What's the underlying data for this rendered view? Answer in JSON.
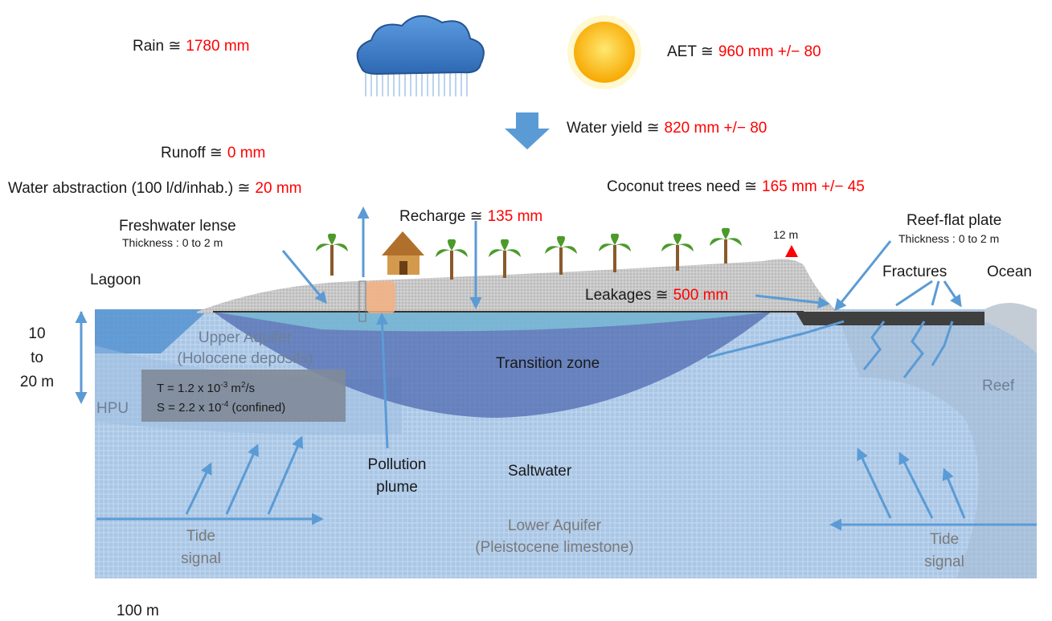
{
  "budget": {
    "rain": {
      "label": "Rain ≅",
      "value": "1780 mm"
    },
    "aet": {
      "label": "AET ≅",
      "value": "960 mm +/− 80"
    },
    "water_yield": {
      "label": "Water yield ≅",
      "value": "820 mm +/− 80"
    },
    "runoff": {
      "label": "Runoff ≅",
      "value": "0 mm"
    },
    "abstraction": {
      "label": "Water abstraction (100 l/d/inhab.) ≅",
      "value": "20 mm"
    },
    "coconut": {
      "label": "Coconut trees need ≅",
      "value": "165 mm +/− 45"
    },
    "recharge": {
      "label": "Recharge ≅",
      "value": "135 mm"
    },
    "leakages": {
      "label": "Leakages ≅",
      "value": "500 mm"
    }
  },
  "labels": {
    "freshwater_lense": {
      "title": "Freshwater lense",
      "subtitle": "Thickness : 0 to 2 m"
    },
    "reef_flat": {
      "title": "Reef-flat plate",
      "subtitle": "Thickness : 0 to 2 m"
    },
    "elevation": "12 m",
    "lagoon": "Lagoon",
    "fractures": "Fractures",
    "ocean": "Ocean",
    "depth": [
      "10",
      "to",
      "20 m"
    ],
    "upper_aquifer": [
      "Upper Aquifer",
      "(Holocene deposits)"
    ],
    "transition_zone": "Transition zone",
    "hpu": "HPU",
    "reef": "Reef",
    "pollution_plume": [
      "Pollution",
      "plume"
    ],
    "saltwater": "Saltwater",
    "lower_aquifer": [
      "Lower Aquifer",
      "(Pleistocene limestone)"
    ],
    "tide_left": [
      "Tide",
      "signal"
    ],
    "tide_right": [
      "Tide",
      "signal"
    ],
    "scale": "100 m"
  },
  "parameters": {
    "t": [
      "T = 1.2 x 10",
      "-3",
      " m",
      "2",
      "/s"
    ],
    "s": [
      "S = 2.2 x 10",
      "-4",
      " (confined)"
    ]
  }
}
